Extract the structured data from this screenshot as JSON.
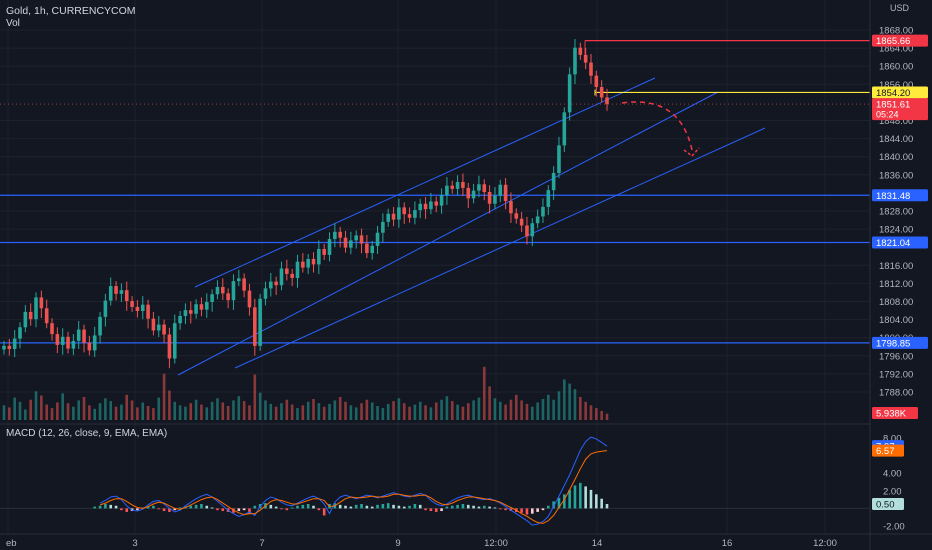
{
  "header": {
    "symbol": "Gold, 1h, CURRENCYCOM",
    "vol_label": "Vol",
    "currency": "USD"
  },
  "macd": {
    "label": "MACD (12, 26, close, 9, EMA, EMA)",
    "ticks": [
      "8.00",
      "4.00",
      "2.00",
      "-2.00"
    ],
    "badges": [
      {
        "text": "7.07",
        "color": "#2962ff"
      },
      {
        "text": "6.57",
        "color": "#ff6d00"
      },
      {
        "text": "0.50",
        "color": "#b2dfdb"
      }
    ]
  },
  "colors": {
    "bg": "#131722",
    "grid": "#1e222d",
    "up": "#26a69a",
    "down": "#ef5350",
    "level": "#2962ff",
    "channel": "#2962ff",
    "red_level": "#f23645",
    "yellow_level": "#ffeb3b",
    "macd_line": "#2962ff",
    "signal_line": "#ff6d00"
  },
  "chart_data": {
    "type": "candlestick",
    "price_ticks": [
      "1868.00",
      "1864.00",
      "1860.00",
      "1856.00",
      "1848.00",
      "1844.00",
      "1840.00",
      "1836.00",
      "1828.00",
      "1824.00",
      "1816.00",
      "1812.00",
      "1808.00",
      "1804.00",
      "1800.00",
      "1796.00",
      "1792.00",
      "1788.00"
    ],
    "x_ticks": [
      "eb",
      "3",
      "7",
      "9",
      "12:00",
      "14",
      "16",
      "12:00"
    ],
    "levels": [
      {
        "price": 1865.66,
        "label": "1865.66",
        "color": "#f23645",
        "kind": "red"
      },
      {
        "price": 1854.2,
        "label": "1854.20",
        "color": "#ffeb3b",
        "kind": "yellow"
      },
      {
        "price": 1831.48,
        "label": "1831.48",
        "color": "#2962ff",
        "kind": "blue"
      },
      {
        "price": 1821.04,
        "label": "1821.04",
        "color": "#2962ff",
        "kind": "blue"
      },
      {
        "price": 1798.85,
        "label": "1798.85",
        "color": "#2962ff",
        "kind": "blue"
      }
    ],
    "last_price": {
      "label": "1851.61",
      "countdown": "05:24",
      "price": 1851.61
    },
    "volume_badge": "5.938K",
    "closes": [
      1798.2,
      1797.5,
      1799.8,
      1802.3,
      1805.7,
      1804.1,
      1808.9,
      1806.5,
      1803.2,
      1800.8,
      1798.4,
      1800.2,
      1797.6,
      1799.3,
      1801.8,
      1798.9,
      1797.2,
      1800.5,
      1804.6,
      1808.2,
      1811.4,
      1809.7,
      1810.5,
      1808.1,
      1806.8,
      1805.9,
      1807.3,
      1804.2,
      1801.6,
      1802.9,
      1800.7,
      1795.4,
      1803.2,
      1804.8,
      1806.1,
      1805.3,
      1807.4,
      1806.2,
      1807.9,
      1809.6,
      1811.2,
      1809.8,
      1808.3,
      1812.5,
      1813.1,
      1810.4,
      1806.7,
      1798.2,
      1808.6,
      1810.9,
      1812.4,
      1811.6,
      1815.3,
      1814.1,
      1813.2,
      1816.8,
      1815.5,
      1817.4,
      1816.2,
      1819.6,
      1818.3,
      1821.8,
      1823.4,
      1822.1,
      1819.9,
      1821.5,
      1822.6,
      1820.8,
      1818.7,
      1820.3,
      1823.2,
      1825.6,
      1827.4,
      1826.1,
      1828.8,
      1827.3,
      1826.5,
      1828.2,
      1829.6,
      1828.4,
      1830.1,
      1829.2,
      1831.5,
      1833.6,
      1832.9,
      1834.4,
      1833.1,
      1830.8,
      1832.5,
      1833.9,
      1832.2,
      1829.6,
      1831.4,
      1833.8,
      1830.2,
      1827.5,
      1826.3,
      1824.8,
      1822.4,
      1825.3,
      1826.8,
      1828.9,
      1832.6,
      1836.4,
      1842.5,
      1849.8,
      1858.2,
      1864.1,
      1862.5,
      1860.8,
      1857.9,
      1855.4,
      1853.1,
      1851.61
    ],
    "macd_hist": [
      0.2,
      0.3,
      0.5,
      0.4,
      0.3,
      -0.2,
      -0.4,
      -0.3,
      -0.2,
      0.1,
      0.2,
      0.3,
      -0.1,
      -0.3,
      -0.4,
      -0.2,
      0.1,
      0.2,
      0.3,
      0.4,
      0.5,
      0.3,
      0.1,
      -0.2,
      -0.3,
      -0.4,
      -0.5,
      -0.3,
      -0.2,
      -0.6,
      0.3,
      0.5,
      0.6,
      0.4,
      0.2,
      -0.1,
      -0.2,
      0.1,
      0.3,
      0.4,
      0.5,
      0.3,
      -0.2,
      -0.8,
      0.5,
      0.6,
      0.4,
      0.3,
      0.2,
      0.4,
      0.5,
      0.3,
      0.2,
      0.4,
      0.5,
      0.6,
      0.4,
      0.3,
      0.2,
      0.3,
      0.5,
      0.4,
      -0.2,
      -0.3,
      -0.4,
      -0.3,
      0.2,
      0.3,
      0.4,
      0.5,
      0.4,
      0.3,
      0.2,
      0.3,
      0.2,
      0.1,
      -0.1,
      -0.2,
      -0.3,
      -0.4,
      -0.5,
      -0.7,
      -0.6,
      -0.4,
      -0.2,
      0.3,
      0.8,
      1.2,
      1.6,
      2.1,
      2.6,
      2.9,
      2.5,
      2.1,
      1.6,
      1.1,
      0.5
    ],
    "macd_line": [
      0.6,
      0.9,
      1.3,
      1.4,
      1.0,
      0.3,
      -0.2,
      -0.3,
      -0.1,
      0.4,
      0.8,
      0.9,
      0.5,
      0.0,
      -0.4,
      -0.2,
      0.3,
      0.7,
      1.1,
      1.4,
      1.6,
      1.3,
      0.8,
      0.3,
      -0.2,
      -0.6,
      -0.9,
      -0.7,
      -0.4,
      -0.8,
      0.2,
      0.9,
      1.3,
      1.1,
      0.7,
      0.4,
      0.3,
      0.6,
      0.9,
      1.2,
      1.4,
      1.1,
      0.5,
      -0.6,
      0.7,
      1.3,
      1.5,
      1.3,
      1.1,
      1.3,
      1.5,
      1.4,
      1.2,
      1.4,
      1.6,
      1.8,
      1.6,
      1.4,
      1.3,
      1.5,
      1.7,
      1.5,
      0.9,
      0.5,
      0.3,
      0.5,
      0.9,
      1.2,
      1.4,
      1.5,
      1.3,
      1.1,
      1.0,
      1.1,
      0.9,
      0.6,
      0.2,
      -0.2,
      -0.6,
      -1.0,
      -1.4,
      -1.9,
      -1.8,
      -1.5,
      -0.9,
      0.2,
      1.4,
      2.6,
      3.8,
      5.2,
      6.6,
      7.6,
      8.1,
      7.9,
      7.5,
      7.07
    ],
    "signal_line": [
      0.4,
      0.6,
      0.9,
      1.1,
      1.1,
      0.8,
      0.4,
      0.1,
      0.0,
      0.2,
      0.5,
      0.7,
      0.6,
      0.3,
      0.0,
      -0.1,
      0.1,
      0.4,
      0.7,
      1.0,
      1.2,
      1.3,
      1.0,
      0.6,
      0.2,
      -0.2,
      -0.5,
      -0.7,
      -0.6,
      -0.6,
      -0.2,
      0.3,
      0.8,
      1.0,
      0.9,
      0.7,
      0.5,
      0.5,
      0.7,
      0.9,
      1.1,
      1.1,
      0.9,
      0.2,
      0.3,
      0.7,
      1.1,
      1.3,
      1.2,
      1.2,
      1.3,
      1.4,
      1.3,
      1.3,
      1.4,
      1.6,
      1.6,
      1.5,
      1.4,
      1.4,
      1.5,
      1.5,
      1.2,
      0.8,
      0.5,
      0.4,
      0.6,
      0.9,
      1.1,
      1.3,
      1.3,
      1.2,
      1.1,
      1.0,
      0.9,
      0.7,
      0.4,
      0.1,
      -0.2,
      -0.6,
      -0.9,
      -1.3,
      -1.6,
      -1.7,
      -1.4,
      -0.8,
      0.1,
      1.0,
      2.1,
      3.3,
      4.5,
      5.6,
      6.2,
      6.4,
      6.5,
      6.57
    ],
    "volume": [
      2.1,
      1.8,
      3.2,
      2.6,
      1.5,
      2.9,
      4.1,
      3.5,
      2.2,
      1.7,
      2.5,
      3.8,
      2.4,
      1.9,
      2.8,
      3.3,
      2.1,
      1.6,
      2.4,
      3.1,
      2.7,
      1.9,
      2.2,
      3.6,
      2.8,
      1.8,
      2.5,
      2.0,
      1.7,
      3.2,
      6.6,
      4.2,
      2.6,
      2.1,
      1.9,
      2.4,
      2.9,
      2.2,
      1.8,
      2.6,
      3.1,
      2.5,
      2.0,
      2.8,
      3.4,
      2.7,
      2.1,
      6.5,
      3.9,
      2.8,
      2.3,
      1.9,
      2.4,
      2.9,
      2.2,
      1.7,
      2.1,
      2.6,
      3.0,
      2.4,
      1.9,
      2.3,
      2.8,
      3.3,
      2.6,
      2.1,
      1.8,
      2.4,
      2.9,
      2.5,
      2.0,
      1.7,
      2.3,
      2.7,
      3.1,
      2.4,
      1.9,
      2.2,
      2.6,
      2.1,
      1.8,
      2.5,
      2.9,
      3.4,
      2.7,
      2.2,
      1.9,
      2.4,
      2.8,
      3.2,
      7.6,
      4.8,
      3.1,
      2.6,
      2.2,
      2.9,
      3.6,
      2.8,
      2.3,
      1.9,
      2.5,
      3.0,
      3.6,
      2.9,
      4.1,
      5.8,
      5.2,
      4.4,
      3.3,
      2.6,
      2.1,
      1.7,
      1.3,
      0.9
    ]
  }
}
